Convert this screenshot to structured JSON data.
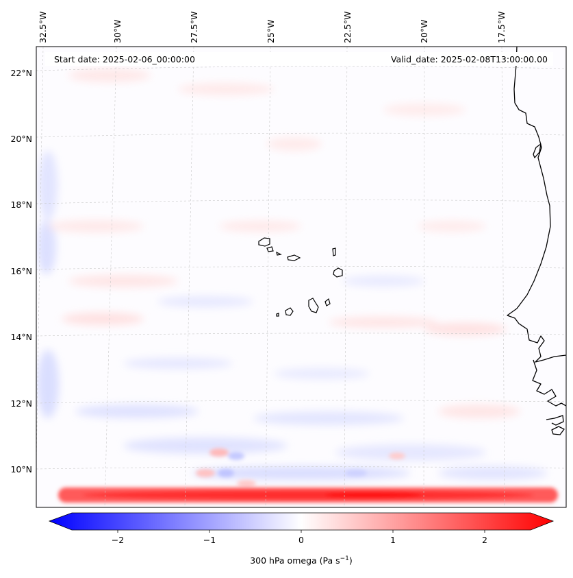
{
  "map": {
    "start_label": "Start date: 2025-02-06_00:00:00",
    "valid_label": "Valid_date: 2025-02-08T13:00:00.00",
    "lon_labels": [
      "32.5°W",
      "30°W",
      "27.5°W",
      "25°W",
      "22.5°W",
      "20°W",
      "17.5°W"
    ],
    "lat_labels": [
      "22°N",
      "20°N",
      "18°N",
      "16°N",
      "14°N",
      "12°N",
      "10°N"
    ],
    "field": "300 hPa omega",
    "colors": {
      "negative": "#0000ff",
      "zero": "#ffffff",
      "positive": "#ff0000",
      "coast": "#000000",
      "grid": "#b0b0b0"
    }
  },
  "colorbar": {
    "label_prefix": "300 hPa omega (Pa s",
    "label_exp": "−1",
    "label_suffix": ")",
    "ticks": [
      "−2",
      "−1",
      "0",
      "1",
      "2"
    ],
    "tick_values": [
      -2,
      -1,
      0,
      1,
      2
    ],
    "vmin": -2.5,
    "vmax": 2.5
  }
}
